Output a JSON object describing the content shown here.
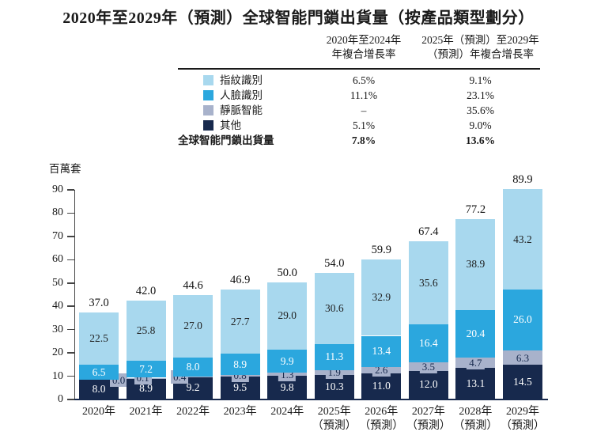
{
  "title": "2020年至2029年（預測）全球智能門鎖出貨量（按產品類型劃分）",
  "colors": {
    "fingerprint": "#a8d8ee",
    "face": "#2ba7de",
    "vein": "#a8b2cb",
    "others": "#17294d",
    "axis": "#444444"
  },
  "cagr_table": {
    "col1_header": {
      "line1": "2020年至2024年",
      "line2": "年複合增長率"
    },
    "col2_header": {
      "line1": "2025年（預測）至2029年",
      "line2": "（預測）年複合增長率"
    },
    "rows": [
      {
        "label": "指紋識別",
        "swatch": "#a8d8ee",
        "col1": "6.5%",
        "col2": "9.1%"
      },
      {
        "label": "人臉識別",
        "swatch": "#2ba7de",
        "col1": "11.1%",
        "col2": "23.1%"
      },
      {
        "label": "靜脈智能",
        "swatch": "#a8b2cb",
        "col1": "–",
        "col2": "35.6%"
      },
      {
        "label": "其他",
        "swatch": "#17294d",
        "col1": "5.1%",
        "col2": "9.0%"
      }
    ],
    "total_row": {
      "label": "全球智能門鎖出貨量",
      "col1": "7.8%",
      "col2": "13.6%"
    }
  },
  "chart_data": {
    "type": "bar",
    "stacked": true,
    "unit_label": "百萬套",
    "ylim": [
      0,
      90
    ],
    "ytick_step": 10,
    "grid": false,
    "categories": [
      {
        "label": "2020年",
        "note": ""
      },
      {
        "label": "2021年",
        "note": ""
      },
      {
        "label": "2022年",
        "note": ""
      },
      {
        "label": "2023年",
        "note": ""
      },
      {
        "label": "2024年",
        "note": ""
      },
      {
        "label": "2025年",
        "note": "（預測）"
      },
      {
        "label": "2026年",
        "note": "（預測）"
      },
      {
        "label": "2027年",
        "note": "（預測）"
      },
      {
        "label": "2028年",
        "note": "（預測）"
      },
      {
        "label": "2029年",
        "note": "（預測）"
      }
    ],
    "series": [
      {
        "name": "其他",
        "color": "#17294d",
        "text_color": "#ffffff",
        "values": [
          8.0,
          8.9,
          9.2,
          9.5,
          9.8,
          10.3,
          11.0,
          12.0,
          13.1,
          14.5
        ]
      },
      {
        "name": "靜脈智能",
        "color": "#a8b2cb",
        "text_color": "#17294d",
        "values": [
          0.0,
          0.1,
          0.4,
          0.8,
          1.3,
          1.9,
          2.6,
          3.5,
          4.7,
          6.3
        ]
      },
      {
        "name": "人臉識別",
        "color": "#2ba7de",
        "text_color": "#ffffff",
        "values": [
          6.5,
          7.2,
          8.0,
          8.9,
          9.9,
          11.3,
          13.4,
          16.4,
          20.4,
          26.0
        ]
      },
      {
        "name": "指紋識別",
        "color": "#a8d8ee",
        "text_color": "#1f1f1f",
        "values": [
          22.5,
          25.8,
          27.0,
          27.7,
          29.0,
          30.6,
          32.9,
          35.6,
          38.9,
          43.2
        ]
      }
    ],
    "totals": [
      "37.0",
      "42.0",
      "44.6",
      "46.9",
      "50.0",
      "54.0",
      "59.9",
      "67.4",
      "77.2",
      "89.9"
    ]
  }
}
